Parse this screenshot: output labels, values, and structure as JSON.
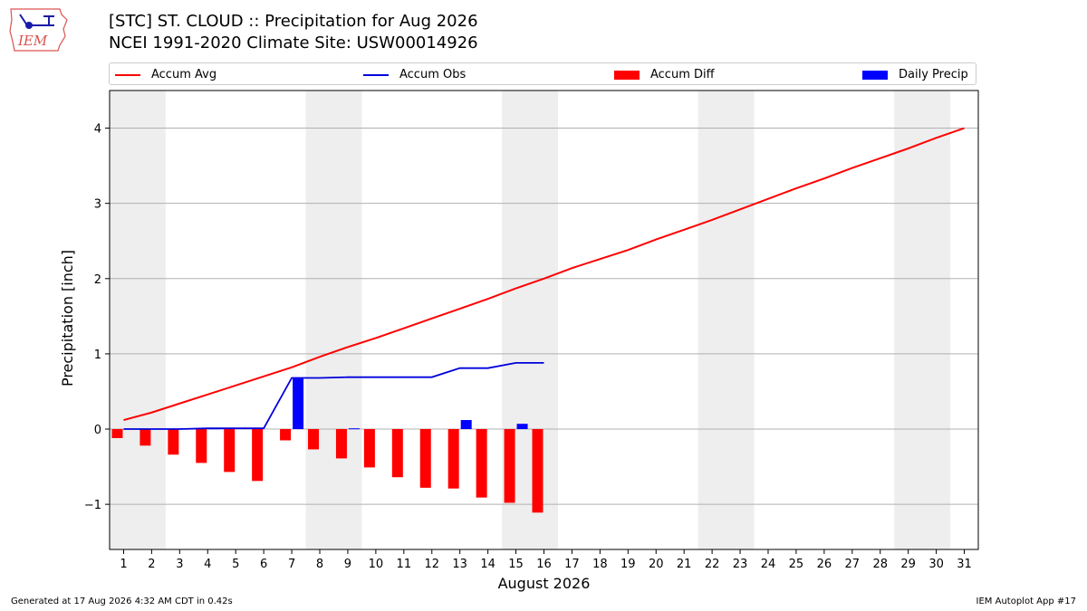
{
  "header": {
    "title_line1": "[STC] ST. CLOUD :: Precipitation for Aug 2026",
    "title_line2": "NCEI 1991-2020 Climate Site: USW00014926",
    "logo_text": "IEM"
  },
  "footer": {
    "left": "Generated at 17 Aug 2026 4:32 AM CDT in 0.42s",
    "right": "IEM Autoplot App #17"
  },
  "colors": {
    "accum_avg": "#ff0000",
    "accum_obs": "#0000dd",
    "accum_diff": "#ff0000",
    "daily_precip": "#0000ff",
    "weekend_shade": "#eeeeee",
    "grid": "#b0b0b0"
  },
  "chart_data": {
    "type": "bar",
    "xlabel": "August 2026",
    "ylabel": "Precipitation [inch]",
    "xlim": [
      0.5,
      31.5
    ],
    "ylim": [
      -1.6,
      4.5
    ],
    "x_ticks": [
      1,
      2,
      3,
      4,
      5,
      6,
      7,
      8,
      9,
      10,
      11,
      12,
      13,
      14,
      15,
      16,
      17,
      18,
      19,
      20,
      21,
      22,
      23,
      24,
      25,
      26,
      27,
      28,
      29,
      30,
      31
    ],
    "y_ticks": [
      -1,
      0,
      1,
      2,
      3,
      4
    ],
    "y_tick_labels": [
      "−1",
      "0",
      "1",
      "2",
      "3",
      "4"
    ],
    "grid": "horizontal",
    "legend_position": "top",
    "weekend_bands": [
      [
        0.5,
        2.5
      ],
      [
        7.5,
        9.5
      ],
      [
        14.5,
        16.5
      ],
      [
        21.5,
        23.5
      ],
      [
        28.5,
        30.5
      ]
    ],
    "series": [
      {
        "name": "Accum Avg",
        "kind": "line",
        "x": [
          1,
          2,
          3,
          4,
          5,
          6,
          7,
          8,
          9,
          10,
          11,
          12,
          13,
          14,
          15,
          16,
          17,
          18,
          19,
          20,
          21,
          22,
          23,
          24,
          25,
          26,
          27,
          28,
          29,
          30,
          31
        ],
        "values": [
          0.12,
          0.22,
          0.34,
          0.46,
          0.58,
          0.7,
          0.82,
          0.96,
          1.09,
          1.21,
          1.34,
          1.47,
          1.6,
          1.73,
          1.87,
          2.0,
          2.14,
          2.26,
          2.38,
          2.52,
          2.65,
          2.78,
          2.92,
          3.06,
          3.2,
          3.33,
          3.47,
          3.6,
          3.73,
          3.87,
          4.0
        ]
      },
      {
        "name": "Accum Obs",
        "kind": "line",
        "x": [
          1,
          2,
          3,
          4,
          5,
          6,
          7,
          8,
          9,
          10,
          11,
          12,
          13,
          14,
          15,
          16
        ],
        "values": [
          0.0,
          0.0,
          0.0,
          0.01,
          0.01,
          0.01,
          0.68,
          0.68,
          0.69,
          0.69,
          0.69,
          0.69,
          0.81,
          0.81,
          0.88,
          0.88
        ]
      },
      {
        "name": "Accum Diff",
        "kind": "bar",
        "x": [
          1,
          2,
          3,
          4,
          5,
          6,
          7,
          8,
          9,
          10,
          11,
          12,
          13,
          14,
          15,
          16
        ],
        "values": [
          -0.12,
          -0.22,
          -0.34,
          -0.45,
          -0.57,
          -0.69,
          -0.15,
          -0.27,
          -0.39,
          -0.51,
          -0.64,
          -0.78,
          -0.79,
          -0.91,
          -0.98,
          -1.11
        ]
      },
      {
        "name": "Daily Precip",
        "kind": "bar",
        "x": [
          1,
          2,
          3,
          4,
          5,
          6,
          7,
          8,
          9,
          10,
          11,
          12,
          13,
          14,
          15,
          16
        ],
        "values": [
          0,
          0,
          0,
          0.01,
          0,
          0,
          0.67,
          0,
          0.01,
          0,
          0,
          0,
          0.12,
          0,
          0.07,
          0
        ]
      }
    ]
  }
}
